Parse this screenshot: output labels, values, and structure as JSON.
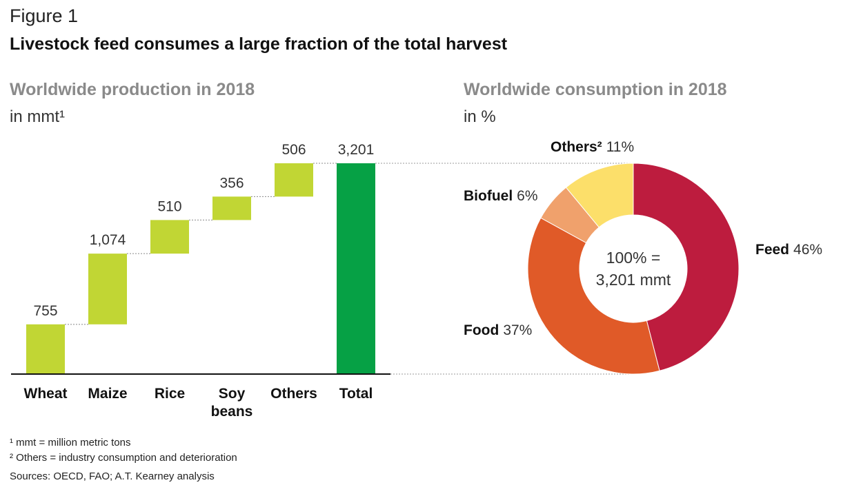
{
  "figure_label": "Figure 1",
  "title": "Livestock feed consumes a large fraction of the total harvest",
  "production": {
    "title": "Worldwide production in 2018",
    "unit": "in mmt¹"
  },
  "consumption": {
    "title": "Worldwide consumption in 2018",
    "unit": "in %",
    "center_line1": "100% =",
    "center_line2": "3,201 mmt"
  },
  "footnotes": {
    "note1": "¹  mmt = million metric tons",
    "note2": "²  Others = industry consumption and deterioration",
    "sources": "Sources: OECD, FAO; A.T. Kearney analysis"
  },
  "colors": {
    "waterfall_step": "#c1d634",
    "waterfall_total": "#06a145",
    "feed": "#bd1c3e",
    "food": "#e05a28",
    "biofuel": "#f0a16c",
    "others": "#fcdf6a"
  },
  "chart_data": [
    {
      "type": "bar",
      "subtype": "waterfall",
      "title": "Worldwide production in 2018",
      "ylabel": "in mmt¹",
      "categories": [
        "Wheat",
        "Maize",
        "Rice",
        "Soy beans",
        "Others",
        "Total"
      ],
      "category_lines": [
        [
          "Wheat"
        ],
        [
          "Maize"
        ],
        [
          "Rice"
        ],
        [
          "Soy",
          "beans"
        ],
        [
          "Others"
        ],
        [
          "Total"
        ]
      ],
      "values": [
        755,
        1074,
        510,
        356,
        506,
        3201
      ],
      "value_labels": [
        "755",
        "1,074",
        "510",
        "356",
        "506",
        "3,201"
      ],
      "ylim": [
        0,
        3201
      ],
      "grid": false
    },
    {
      "type": "pie",
      "subtype": "donut",
      "title": "Worldwide consumption in 2018",
      "slices": [
        {
          "name": "Feed",
          "value": 46,
          "label": "46%",
          "color": "#bd1c3e"
        },
        {
          "name": "Food",
          "value": 37,
          "label": "37%",
          "color": "#e05a28"
        },
        {
          "name": "Biofuel",
          "value": 6,
          "label": "6%",
          "color": "#f0a16c"
        },
        {
          "name": "Others²",
          "value": 11,
          "label": "11%",
          "color": "#fcdf6a"
        }
      ],
      "total_label": "100% = 3,201 mmt"
    }
  ]
}
